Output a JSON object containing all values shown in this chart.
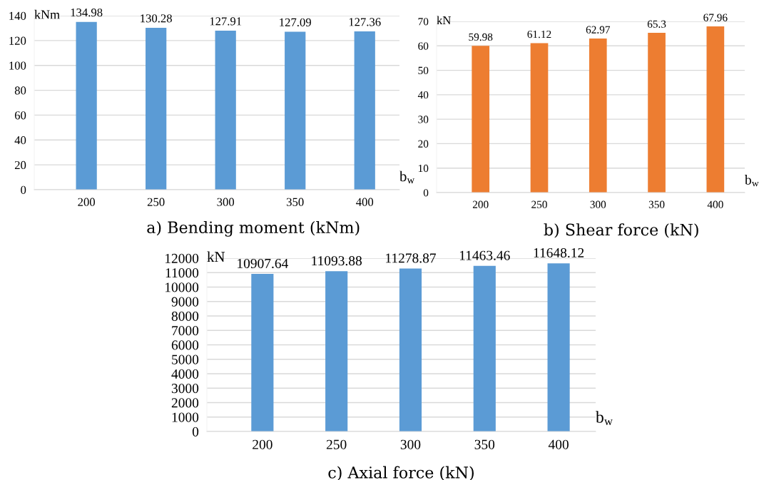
{
  "chart_data": [
    {
      "type": "bar",
      "title": "a) Bending moment (kNm)",
      "ylabel": "kNm",
      "xlabel": "b$_{w}$",
      "categories": [
        "200",
        "250",
        "300",
        "350",
        "400"
      ],
      "values": [
        134.98,
        130.28,
        127.91,
        127.09,
        127.36
      ],
      "color": "#5b9bd5",
      "ylim": [
        0,
        140
      ],
      "yticks": [
        0,
        20,
        40,
        60,
        80,
        100,
        120,
        140
      ],
      "grid": "y",
      "data_labels": true
    },
    {
      "type": "bar",
      "title": "b) Shear force (kN)",
      "ylabel": "kN",
      "xlabel": "b$_{w}$",
      "categories": [
        "200",
        "250",
        "300",
        "350",
        "400"
      ],
      "values": [
        59.98,
        61.12,
        62.97,
        65.3,
        67.96
      ],
      "color": "#ed7d31",
      "ylim": [
        0,
        70
      ],
      "yticks": [
        0,
        10,
        20,
        30,
        40,
        50,
        60,
        70
      ],
      "grid": "y",
      "data_labels": true
    },
    {
      "type": "bar",
      "title": "c) Axial force (kN)",
      "ylabel": "kN",
      "xlabel": "b$_{w}$",
      "categories": [
        "200",
        "250",
        "300",
        "350",
        "400"
      ],
      "values": [
        10907.64,
        11093.88,
        11278.87,
        11463.46,
        11648.12
      ],
      "color": "#5b9bd5",
      "ylim": [
        0,
        12000
      ],
      "yticks": [
        0,
        1000,
        2000,
        3000,
        4000,
        5000,
        6000,
        7000,
        8000,
        9000,
        10000,
        11000,
        12000
      ],
      "grid": "y",
      "data_labels": true
    }
  ]
}
